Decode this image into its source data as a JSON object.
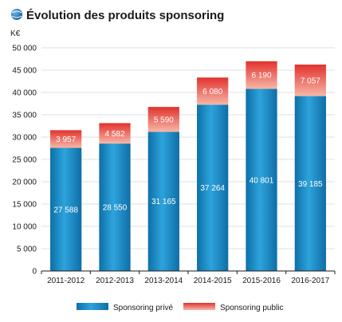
{
  "chart_data": {
    "type": "bar",
    "stacked": true,
    "title": "Évolution des produits sponsoring",
    "ylabel": "K€",
    "xlabel": "",
    "ylim": [
      0,
      50000
    ],
    "yticks": [
      "0",
      "5 000",
      "10 000",
      "15 000",
      "20 000",
      "25 000",
      "30 000",
      "35 000",
      "40 000",
      "45 000",
      "50 000"
    ],
    "grid": true,
    "legend_position": "bottom",
    "categories": [
      "2011-2012",
      "2012-2013",
      "2013-2014",
      "2014-2015",
      "2015-2016",
      "2016-2017"
    ],
    "series": [
      {
        "name": "Sponsoring privé",
        "color": "#1f8ec9",
        "values": [
          27588,
          28550,
          31165,
          37264,
          40801,
          39185
        ],
        "labels": [
          "27 588",
          "28 550",
          "31 165",
          "37 264",
          "40 801",
          "39 185"
        ]
      },
      {
        "name": "Sponsoring public",
        "color": "#e8433c",
        "values": [
          3957,
          4582,
          5590,
          6080,
          6190,
          7057
        ],
        "labels": [
          "3 957",
          "4 582",
          "5 590",
          "6 080",
          "6 190",
          "7 057"
        ]
      }
    ]
  },
  "colors": {
    "title_icon": "#1f6fb0",
    "grid": "#cfd6dc",
    "axis": "#1a1a1a"
  },
  "icons": {
    "title_icon": "globe-bullet-icon"
  }
}
